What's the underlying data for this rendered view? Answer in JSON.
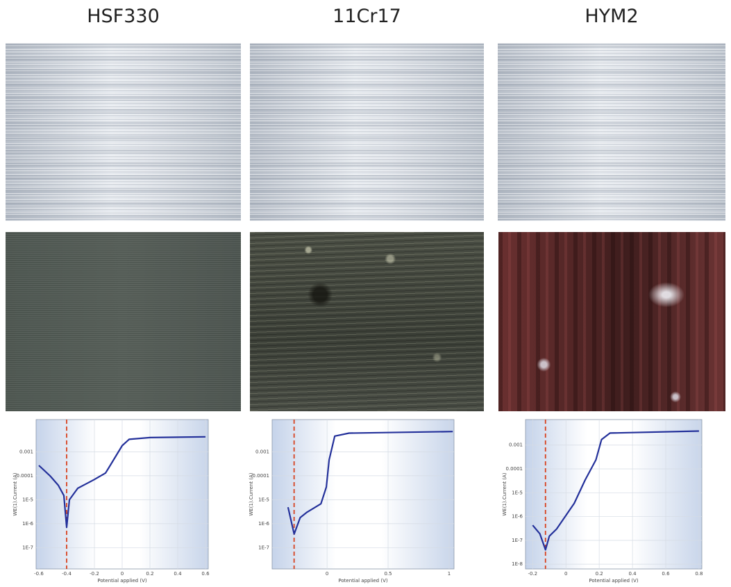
{
  "columns": [
    {
      "heading": "HSF330"
    },
    {
      "heading": "11Cr17"
    },
    {
      "heading": "HYM2"
    }
  ],
  "chart_data": [
    {
      "type": "line",
      "xlabel": "Potential applied (V)",
      "ylabel": "WE(1).Current (A)",
      "log_y": true,
      "grid": true,
      "xlim": [
        -0.62,
        0.62
      ],
      "ylim": [
        1.3e-08,
        0.022
      ],
      "xticks": [
        -0.6,
        -0.4,
        -0.2,
        0,
        0.2,
        0.4,
        0.6
      ],
      "yticks": [
        {
          "value": 1e-07,
          "label": "1E-7"
        },
        {
          "value": 1e-06,
          "label": "1E-6"
        },
        {
          "value": 1e-05,
          "label": "1E-5"
        },
        0.0001,
        0.001
      ],
      "vline": -0.4,
      "vline_color": "#d8401c",
      "series": [
        {
          "color": "#23309a",
          "x": [
            -0.6,
            -0.52,
            -0.46,
            -0.42,
            -0.4,
            -0.38,
            -0.32,
            -0.2,
            -0.12,
            -0.1,
            -0.05,
            0,
            0.05,
            0.2,
            0.6
          ],
          "values": [
            0.00027,
            0.0001,
            4e-05,
            1.5e-05,
            7e-07,
            1e-05,
            3e-05,
            7e-05,
            0.00013,
            0.0002,
            0.0006,
            0.0018,
            0.0033,
            0.0039,
            0.0042
          ]
        }
      ]
    },
    {
      "type": "line",
      "xlabel": "Potential applied (V)",
      "ylabel": "WE(1).Current (A)",
      "log_y": true,
      "grid": true,
      "xlim": [
        -0.45,
        1.04
      ],
      "ylim": [
        1.3e-08,
        0.022
      ],
      "xticks": [
        0,
        0.5,
        1
      ],
      "yticks": [
        {
          "value": 1e-07,
          "label": "1E-7"
        },
        {
          "value": 1e-06,
          "label": "1E-6"
        },
        {
          "value": 1e-05,
          "label": "1E-5"
        },
        0.0001,
        0.001
      ],
      "vline": -0.27,
      "vline_color": "#d8401c",
      "series": [
        {
          "color": "#23309a",
          "x": [
            -0.32,
            -0.27,
            -0.22,
            -0.165,
            -0.05,
            -0.006,
            0.017,
            0.063,
            0.18,
            1.03
          ],
          "values": [
            4.9e-06,
            3.7e-07,
            1.8e-06,
            3e-06,
            6.8e-06,
            3.4e-05,
            0.00046,
            0.0045,
            0.006,
            0.007
          ]
        }
      ]
    },
    {
      "type": "line",
      "xlabel": "Potential applied (V)",
      "ylabel": "WE(1).Current (A)",
      "log_y": true,
      "grid": true,
      "xlim": [
        -0.243,
        0.817
      ],
      "ylim": [
        6.3e-09,
        0.0118
      ],
      "xticks": [
        -0.2,
        0,
        0.2,
        0.4,
        0.6,
        0.8
      ],
      "yticks": [
        {
          "value": 1e-08,
          "label": "1E-8"
        },
        {
          "value": 1e-07,
          "label": "1E-7"
        },
        {
          "value": 1e-06,
          "label": "1E-6"
        },
        {
          "value": 1e-05,
          "label": "1E-5"
        },
        0.0001,
        0.001
      ],
      "vline": -0.123,
      "vline_color": "#d8401c",
      "series": [
        {
          "color": "#23309a",
          "x": [
            -0.2,
            -0.157,
            -0.123,
            -0.1,
            -0.056,
            0.05,
            0.115,
            0.18,
            0.214,
            0.265,
            0.8
          ],
          "values": [
            4.3e-07,
            1.9e-07,
            4e-08,
            1.5e-07,
            3e-07,
            3.6e-06,
            3.4e-05,
            0.00024,
            0.0017,
            0.0032,
            0.0039
          ]
        }
      ]
    }
  ]
}
